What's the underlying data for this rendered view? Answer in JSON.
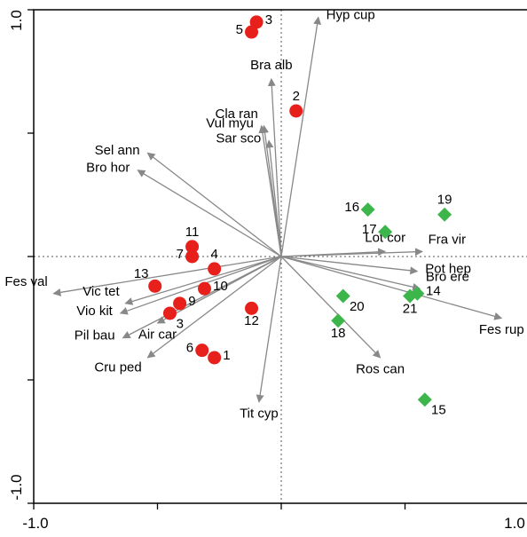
{
  "chart_data": {
    "type": "scatter",
    "title": "",
    "xlabel": "",
    "ylabel": "",
    "xlim": [
      -1.0,
      1.0
    ],
    "ylim": [
      -1.0,
      1.0
    ],
    "xticks": [
      {
        "value": -1.0,
        "label": "-1.0"
      },
      {
        "value": -0.5,
        "label": ""
      },
      {
        "value": 0.0,
        "label": ""
      },
      {
        "value": 0.5,
        "label": ""
      },
      {
        "value": 1.0,
        "label": "1.0"
      }
    ],
    "yticks": [
      {
        "value": -1.0,
        "label": "-1.0"
      },
      {
        "value": -0.5,
        "label": ""
      },
      {
        "value": 0.0,
        "label": ""
      },
      {
        "value": 0.5,
        "label": ""
      },
      {
        "value": 1.0,
        "label": "1.0"
      }
    ],
    "origin_lines": "dotted",
    "colors": {
      "arrow": "#888888",
      "group_red": "#e8201c",
      "group_green": "#3cb54a",
      "frame": "#000000"
    },
    "species_arrows": [
      {
        "label": "Hyp cup",
        "x": 0.15,
        "y": 0.97,
        "label_pos": "right"
      },
      {
        "label": "Bra alb",
        "x": -0.04,
        "y": 0.72,
        "label_pos": "above"
      },
      {
        "label": "Cla ran",
        "x": -0.07,
        "y": 0.53,
        "label_pos": "above-left"
      },
      {
        "label": "Vul myu",
        "x": -0.08,
        "y": 0.53,
        "label_pos": "left"
      },
      {
        "label": "Sar sco",
        "x": -0.05,
        "y": 0.47,
        "label_pos": "left"
      },
      {
        "label": "Sel ann",
        "x": -0.54,
        "y": 0.42,
        "label_pos": "left"
      },
      {
        "label": "Bro hor",
        "x": -0.58,
        "y": 0.35,
        "label_pos": "left"
      },
      {
        "label": "Lot cor",
        "x": 0.42,
        "y": 0.02,
        "label_pos": "above"
      },
      {
        "label": "Fra vir",
        "x": 0.57,
        "y": 0.02,
        "label_pos": "above-right"
      },
      {
        "label": "Pot hep",
        "x": 0.55,
        "y": -0.06,
        "label_pos": "right"
      },
      {
        "label": "Bro ere",
        "x": 0.56,
        "y": -0.13,
        "label_pos": "above-right"
      },
      {
        "label": "Fes rup",
        "x": 0.89,
        "y": -0.25,
        "label_pos": "below"
      },
      {
        "label": "Ros can",
        "x": 0.4,
        "y": -0.41,
        "label_pos": "below"
      },
      {
        "label": "Tit cyp",
        "x": -0.09,
        "y": -0.59,
        "label_pos": "below"
      },
      {
        "label": "Fes val",
        "x": -0.92,
        "y": -0.15,
        "label_pos": "above-left"
      },
      {
        "label": "Vic tet",
        "x": -0.63,
        "y": -0.19,
        "label_pos": "above-left"
      },
      {
        "label": "Vio kit",
        "x": -0.65,
        "y": -0.23,
        "label_pos": "left"
      },
      {
        "label": "Air car",
        "x": -0.5,
        "y": -0.27,
        "label_pos": "below"
      },
      {
        "label": "Pil bau",
        "x": -0.64,
        "y": -0.33,
        "label_pos": "left"
      },
      {
        "label": "Cru ped",
        "x": -0.54,
        "y": -0.41,
        "label_pos": "below-left"
      }
    ],
    "sites": [
      {
        "label": "3",
        "x": -0.1,
        "y": 0.95,
        "group": "red",
        "label_pos": "right"
      },
      {
        "label": "5",
        "x": -0.12,
        "y": 0.91,
        "group": "red",
        "label_pos": "left"
      },
      {
        "label": "2",
        "x": 0.06,
        "y": 0.59,
        "group": "red",
        "label_pos": "above"
      },
      {
        "label": "11",
        "x": -0.36,
        "y": 0.04,
        "group": "red",
        "label_pos": "above"
      },
      {
        "label": "4",
        "x": -0.27,
        "y": -0.05,
        "group": "red",
        "label_pos": "above"
      },
      {
        "label": "7",
        "x": -0.36,
        "y": -0.0,
        "group": "red",
        "label_pos": "left"
      },
      {
        "label": "13",
        "x": -0.51,
        "y": -0.12,
        "group": "red",
        "label_pos": "above-left"
      },
      {
        "label": "10",
        "x": -0.31,
        "y": -0.13,
        "group": "red",
        "label_pos": "right"
      },
      {
        "label": "9",
        "x": -0.41,
        "y": -0.19,
        "group": "red",
        "label_pos": "right"
      },
      {
        "label": "3",
        "x": -0.45,
        "y": -0.23,
        "group": "red",
        "label_pos": "below-right"
      },
      {
        "label": "12",
        "x": -0.12,
        "y": -0.21,
        "group": "red",
        "label_pos": "below"
      },
      {
        "label": "6",
        "x": -0.32,
        "y": -0.38,
        "group": "red",
        "label_pos": "left"
      },
      {
        "label": "1",
        "x": -0.27,
        "y": -0.41,
        "group": "red",
        "label_pos": "right"
      },
      {
        "label": "16",
        "x": 0.35,
        "y": 0.19,
        "group": "green",
        "label_pos": "left"
      },
      {
        "label": "19",
        "x": 0.66,
        "y": 0.17,
        "group": "green",
        "label_pos": "above"
      },
      {
        "label": "17",
        "x": 0.42,
        "y": 0.1,
        "group": "green",
        "label_pos": "left"
      },
      {
        "label": "20",
        "x": 0.25,
        "y": -0.16,
        "group": "green",
        "label_pos": "below-right"
      },
      {
        "label": "14",
        "x": 0.55,
        "y": -0.15,
        "group": "green",
        "label_pos": "right"
      },
      {
        "label": "21",
        "x": 0.52,
        "y": -0.16,
        "group": "green",
        "label_pos": "below"
      },
      {
        "label": "18",
        "x": 0.23,
        "y": -0.26,
        "group": "green",
        "label_pos": "below"
      },
      {
        "label": "15",
        "x": 0.58,
        "y": -0.58,
        "group": "green",
        "label_pos": "below-right"
      }
    ]
  }
}
